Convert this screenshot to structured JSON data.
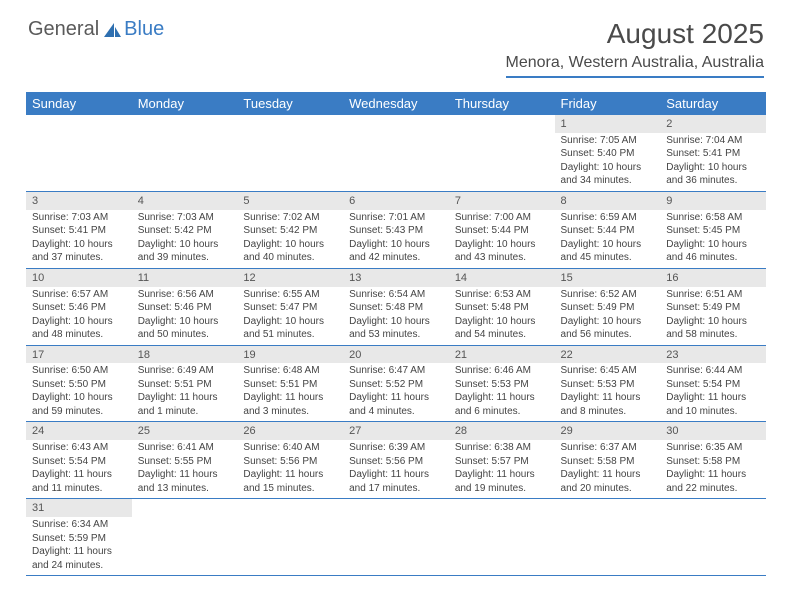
{
  "logo": {
    "text_a": "General",
    "text_b": "Blue"
  },
  "title": "August 2025",
  "location": "Menora, Western Australia, Australia",
  "colors": {
    "accent": "#3a7cc4",
    "header_text": "#ffffff",
    "daynum_bg": "#e8e8e8",
    "text": "#444444",
    "bg": "#ffffff"
  },
  "day_names": [
    "Sunday",
    "Monday",
    "Tuesday",
    "Wednesday",
    "Thursday",
    "Friday",
    "Saturday"
  ],
  "weeks": [
    [
      null,
      null,
      null,
      null,
      null,
      {
        "n": "1",
        "sr": "7:05 AM",
        "ss": "5:40 PM",
        "dl": "10 hours and 34 minutes."
      },
      {
        "n": "2",
        "sr": "7:04 AM",
        "ss": "5:41 PM",
        "dl": "10 hours and 36 minutes."
      }
    ],
    [
      {
        "n": "3",
        "sr": "7:03 AM",
        "ss": "5:41 PM",
        "dl": "10 hours and 37 minutes."
      },
      {
        "n": "4",
        "sr": "7:03 AM",
        "ss": "5:42 PM",
        "dl": "10 hours and 39 minutes."
      },
      {
        "n": "5",
        "sr": "7:02 AM",
        "ss": "5:42 PM",
        "dl": "10 hours and 40 minutes."
      },
      {
        "n": "6",
        "sr": "7:01 AM",
        "ss": "5:43 PM",
        "dl": "10 hours and 42 minutes."
      },
      {
        "n": "7",
        "sr": "7:00 AM",
        "ss": "5:44 PM",
        "dl": "10 hours and 43 minutes."
      },
      {
        "n": "8",
        "sr": "6:59 AM",
        "ss": "5:44 PM",
        "dl": "10 hours and 45 minutes."
      },
      {
        "n": "9",
        "sr": "6:58 AM",
        "ss": "5:45 PM",
        "dl": "10 hours and 46 minutes."
      }
    ],
    [
      {
        "n": "10",
        "sr": "6:57 AM",
        "ss": "5:46 PM",
        "dl": "10 hours and 48 minutes."
      },
      {
        "n": "11",
        "sr": "6:56 AM",
        "ss": "5:46 PM",
        "dl": "10 hours and 50 minutes."
      },
      {
        "n": "12",
        "sr": "6:55 AM",
        "ss": "5:47 PM",
        "dl": "10 hours and 51 minutes."
      },
      {
        "n": "13",
        "sr": "6:54 AM",
        "ss": "5:48 PM",
        "dl": "10 hours and 53 minutes."
      },
      {
        "n": "14",
        "sr": "6:53 AM",
        "ss": "5:48 PM",
        "dl": "10 hours and 54 minutes."
      },
      {
        "n": "15",
        "sr": "6:52 AM",
        "ss": "5:49 PM",
        "dl": "10 hours and 56 minutes."
      },
      {
        "n": "16",
        "sr": "6:51 AM",
        "ss": "5:49 PM",
        "dl": "10 hours and 58 minutes."
      }
    ],
    [
      {
        "n": "17",
        "sr": "6:50 AM",
        "ss": "5:50 PM",
        "dl": "10 hours and 59 minutes."
      },
      {
        "n": "18",
        "sr": "6:49 AM",
        "ss": "5:51 PM",
        "dl": "11 hours and 1 minute."
      },
      {
        "n": "19",
        "sr": "6:48 AM",
        "ss": "5:51 PM",
        "dl": "11 hours and 3 minutes."
      },
      {
        "n": "20",
        "sr": "6:47 AM",
        "ss": "5:52 PM",
        "dl": "11 hours and 4 minutes."
      },
      {
        "n": "21",
        "sr": "6:46 AM",
        "ss": "5:53 PM",
        "dl": "11 hours and 6 minutes."
      },
      {
        "n": "22",
        "sr": "6:45 AM",
        "ss": "5:53 PM",
        "dl": "11 hours and 8 minutes."
      },
      {
        "n": "23",
        "sr": "6:44 AM",
        "ss": "5:54 PM",
        "dl": "11 hours and 10 minutes."
      }
    ],
    [
      {
        "n": "24",
        "sr": "6:43 AM",
        "ss": "5:54 PM",
        "dl": "11 hours and 11 minutes."
      },
      {
        "n": "25",
        "sr": "6:41 AM",
        "ss": "5:55 PM",
        "dl": "11 hours and 13 minutes."
      },
      {
        "n": "26",
        "sr": "6:40 AM",
        "ss": "5:56 PM",
        "dl": "11 hours and 15 minutes."
      },
      {
        "n": "27",
        "sr": "6:39 AM",
        "ss": "5:56 PM",
        "dl": "11 hours and 17 minutes."
      },
      {
        "n": "28",
        "sr": "6:38 AM",
        "ss": "5:57 PM",
        "dl": "11 hours and 19 minutes."
      },
      {
        "n": "29",
        "sr": "6:37 AM",
        "ss": "5:58 PM",
        "dl": "11 hours and 20 minutes."
      },
      {
        "n": "30",
        "sr": "6:35 AM",
        "ss": "5:58 PM",
        "dl": "11 hours and 22 minutes."
      }
    ],
    [
      {
        "n": "31",
        "sr": "6:34 AM",
        "ss": "5:59 PM",
        "dl": "11 hours and 24 minutes."
      },
      null,
      null,
      null,
      null,
      null,
      null
    ]
  ],
  "labels": {
    "sunrise": "Sunrise:",
    "sunset": "Sunset:",
    "daylight": "Daylight:"
  }
}
